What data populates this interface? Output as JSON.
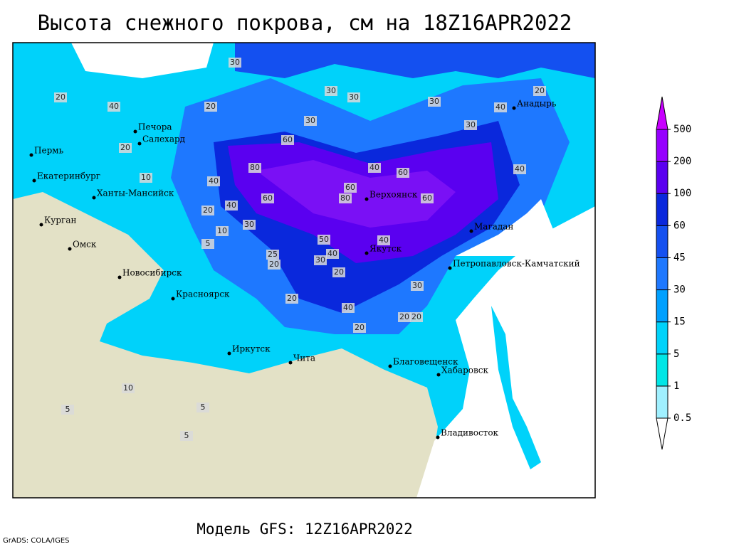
{
  "header": {
    "title": "Высота снежного покрова, см на 18Z16APR2022"
  },
  "footer": {
    "model": "Модель GFS: 12Z16APR2022",
    "credit": "GrADS: COLA/IGES"
  },
  "cities": [
    "Печора",
    "Салехард",
    "Пермь",
    "Екатеринбург",
    "Ханты-Мансийск",
    "Курган",
    "Омск",
    "Новосибирск",
    "Красноярск",
    "Иркутск",
    "Чита",
    "Верхоянск",
    "Якутск",
    "Магадан",
    "Петропавловск-Камчатский",
    "Анадырь",
    "Благовещенск",
    "Хабаровск",
    "Владивосток"
  ],
  "contour_labels": [
    30,
    30,
    30,
    30,
    30,
    20,
    20,
    10,
    40,
    20,
    20,
    40,
    60,
    80,
    40,
    60,
    80,
    60,
    60,
    40,
    60,
    40,
    30,
    20,
    10,
    5,
    25,
    20,
    20,
    30,
    40,
    20,
    30,
    40,
    50,
    20,
    20,
    10,
    5,
    5,
    5,
    40,
    30,
    40,
    20
  ],
  "legend": {
    "levels": [
      0.5,
      1,
      5,
      15,
      30,
      45,
      60,
      100,
      200,
      500
    ],
    "colors": [
      "#ffffff",
      "#a0f0ff",
      "#00e6e6",
      "#00d2fa",
      "#00a0ff",
      "#1e78ff",
      "#1450f0",
      "#0a28dc",
      "#5a00f0",
      "#9600ff",
      "#c800ff"
    ]
  }
}
